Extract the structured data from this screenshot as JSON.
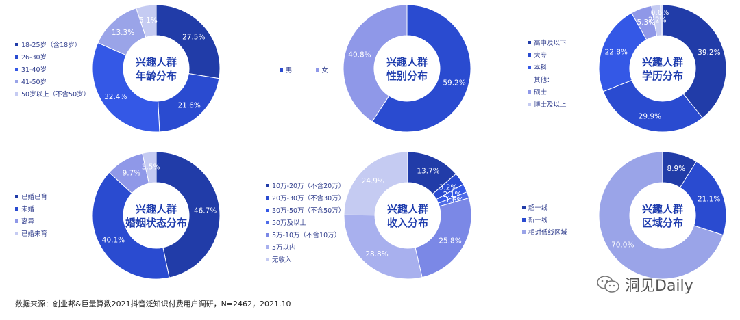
{
  "chart_data": [
    {
      "type": "pie",
      "title": "兴趣人群\n年龄分布",
      "categories": [
        "18-25岁（含18岁）",
        "26-30岁",
        "31-40岁",
        "41-50岁",
        "50岁以上（不含50岁）"
      ],
      "values": [
        27.5,
        21.6,
        32.4,
        13.3,
        5.1
      ],
      "labels": [
        "27.5%",
        "21.6%",
        "32.4%",
        "13.3%",
        "5.1%"
      ],
      "colors": [
        "#213ca8",
        "#2a4bd0",
        "#3458e6",
        "#9aa4e8",
        "#c5cbf2"
      ]
    },
    {
      "type": "pie",
      "title": "兴趣人群\n性别分布",
      "categories": [
        "男",
        "女"
      ],
      "values": [
        59.2,
        40.8
      ],
      "labels": [
        "59.2%",
        "40.8%"
      ],
      "colors": [
        "#2a4bd0",
        "#8f98e8"
      ]
    },
    {
      "type": "pie",
      "title": "兴趣人群\n学历分布",
      "categories": [
        "高中及以下",
        "大专",
        "本科",
        "其他：",
        "硕士",
        "博士及以上"
      ],
      "values": [
        39.2,
        29.9,
        22.8,
        0,
        5.3,
        2.2
      ],
      "extra_labels": [
        {
          "text": "0.6%",
          "value": 0.6
        }
      ],
      "labels": [
        "39.2%",
        "29.9%",
        "22.8%",
        "",
        "5.3%",
        "2.2%"
      ],
      "colors": [
        "#213ca8",
        "#2a4bd0",
        "#3458e6",
        "#ffffff",
        "#8f98e8",
        "#c5cbf2"
      ]
    },
    {
      "type": "pie",
      "title": "兴趣人群\n婚姻状态分布",
      "categories": [
        "已婚已育",
        "未婚",
        "离异",
        "已婚未育"
      ],
      "values": [
        46.7,
        40.1,
        9.7,
        3.5
      ],
      "labels": [
        "46.7%",
        "40.1%",
        "9.7%",
        "3.5%"
      ],
      "colors": [
        "#213ca8",
        "#2a4bd0",
        "#8f98e8",
        "#c5cbf2"
      ]
    },
    {
      "type": "pie",
      "title": "兴趣人群\n收入分布",
      "categories": [
        "10万-20万（不含20万）",
        "20万-30万（不含30万）",
        "30万-50万（不含50万）",
        "50万及以上",
        "5万-10万（不含10万）",
        "5万以内",
        "无收入"
      ],
      "values": [
        13.7,
        3.2,
        2.1,
        1.6,
        25.8,
        28.8,
        24.9
      ],
      "labels": [
        "13.7%",
        "3.2%",
        "2.1%",
        "1.6%",
        "25.8%",
        "28.8%",
        "24.9%"
      ],
      "colors": [
        "#213ca8",
        "#2a4bd0",
        "#3458e6",
        "#4f6ce8",
        "#7b88e6",
        "#a8b0ee",
        "#c5cbf2"
      ]
    },
    {
      "type": "pie",
      "title": "兴趣人群\n区域分布",
      "categories": [
        "超一线",
        "新一线",
        "相对低线区域"
      ],
      "values": [
        8.9,
        21.1,
        70.0
      ],
      "labels": [
        "8.9%",
        "21.1%",
        "70.0%"
      ],
      "colors": [
        "#213ca8",
        "#2a4bd0",
        "#9aa4e8"
      ]
    }
  ],
  "footer": "数据来源：创业邦&巨量算数2021抖音泛知识付费用户调研，N=2462，2021.10",
  "watermark": "洞见Daily",
  "icon": "wechat-icon"
}
